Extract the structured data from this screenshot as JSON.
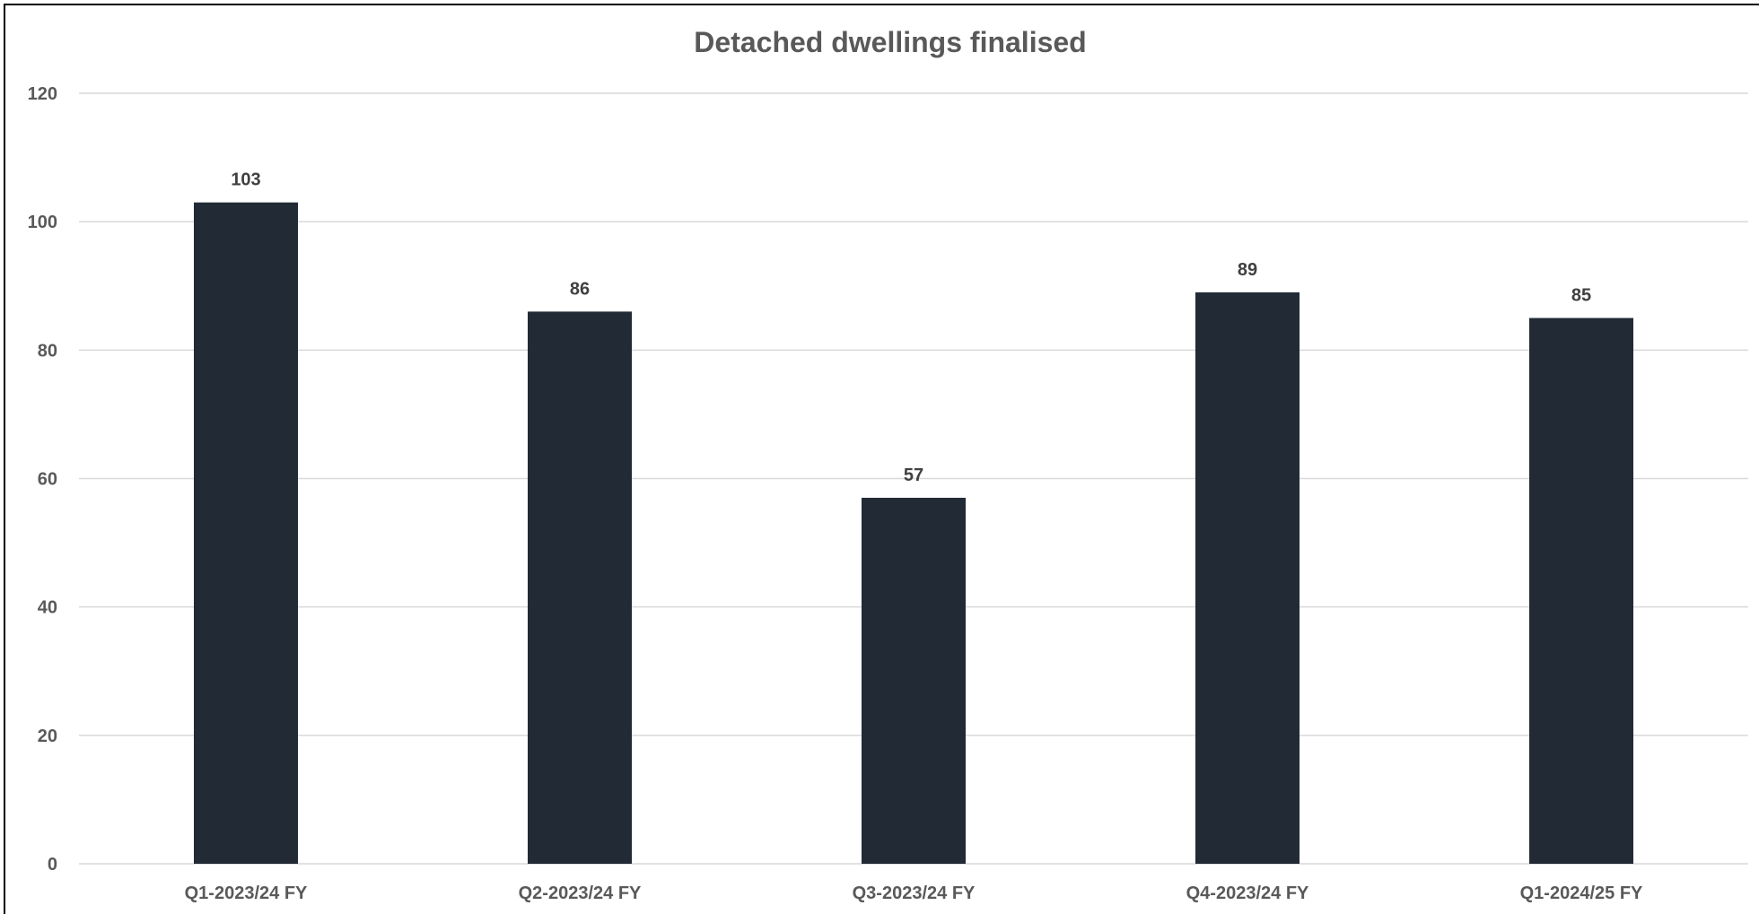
{
  "chart_data": {
    "type": "bar",
    "title": "Detached dwellings finalised",
    "categories": [
      "Q1-2023/24 FY",
      "Q2-2023/24 FY",
      "Q3-2023/24 FY",
      "Q4-2023/24 FY",
      "Q1-2024/25 FY"
    ],
    "values": [
      103,
      86,
      57,
      89,
      85
    ],
    "data_labels": [
      "103",
      "86",
      "57",
      "89",
      "85"
    ],
    "ylim": [
      0,
      120
    ],
    "yticks": [
      0,
      20,
      40,
      60,
      80,
      100,
      120
    ],
    "ytick_labels": [
      "0",
      "20",
      "40",
      "60",
      "80",
      "100",
      "120"
    ],
    "xlabel": "",
    "ylabel": "",
    "grid": true,
    "legend": "none",
    "colors": {
      "bar": "#222a35",
      "grid": "#d9d9d9",
      "title": "#595959",
      "tick_label": "#595959",
      "data_label": "#404040",
      "frame": "#000000"
    }
  }
}
